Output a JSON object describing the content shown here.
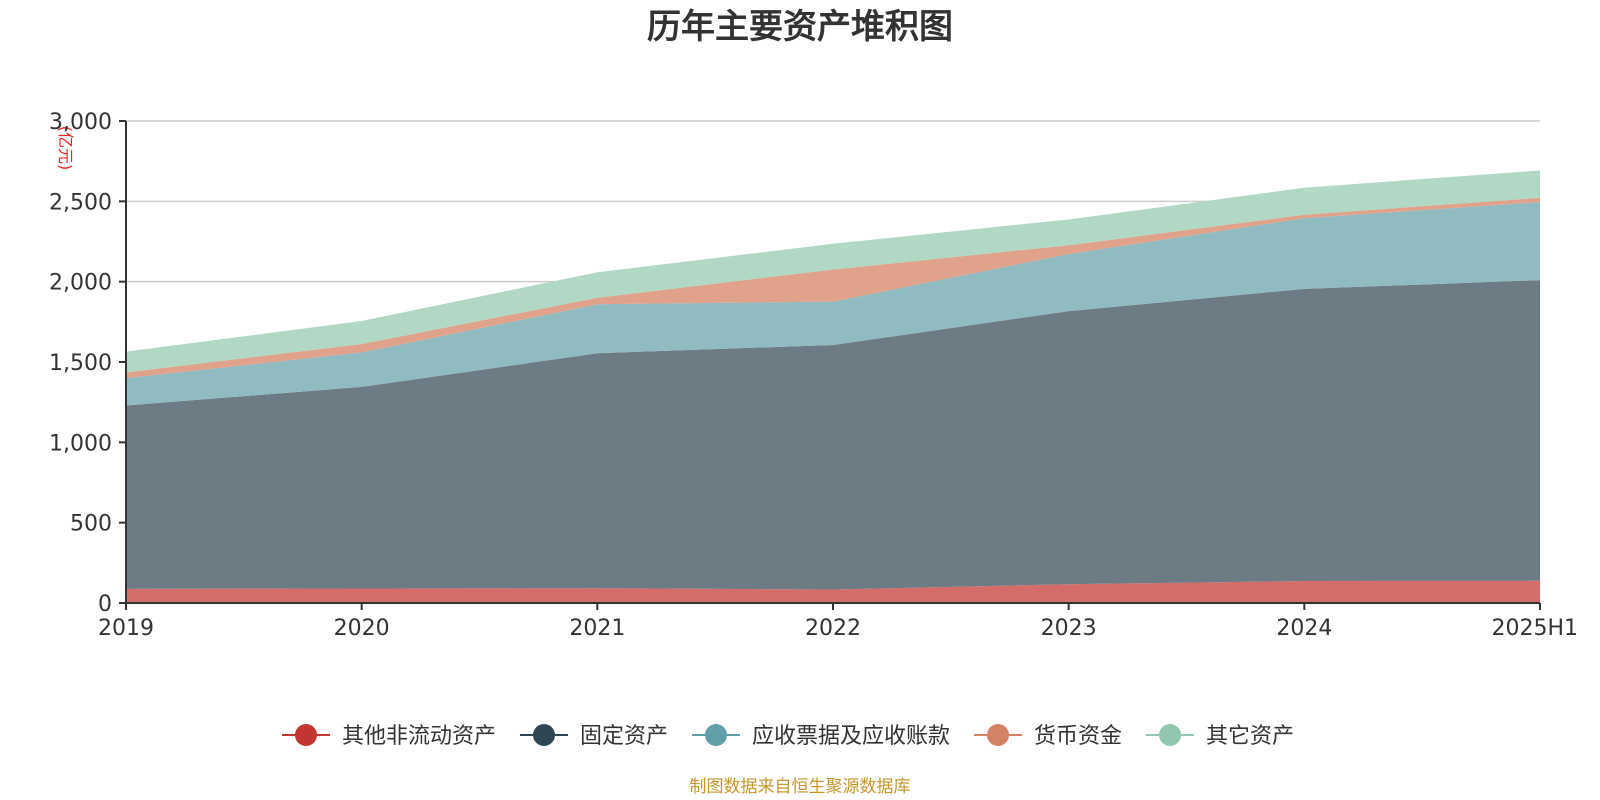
{
  "chart_data": {
    "type": "area",
    "stacked": true,
    "title": "历年主要资产堆积图",
    "unit_label": "(亿元)",
    "x": [
      "2019",
      "2020",
      "2021",
      "2022",
      "2023",
      "2024",
      "2025H1"
    ],
    "ylim": [
      0,
      3000
    ],
    "yticks": [
      0,
      500,
      1000,
      1500,
      2000,
      2500,
      3000
    ],
    "ytick_labels": [
      "0",
      "500",
      "1,000",
      "1,500",
      "2,000",
      "2,500",
      "3,000"
    ],
    "grid": true,
    "legend_position": "bottom",
    "series": [
      {
        "name": "其他非流动资产",
        "color": "#c23531",
        "fill": "#d46c69",
        "values": [
          88,
          90,
          92,
          84,
          117,
          137,
          138
        ]
      },
      {
        "name": "固定资产",
        "color": "#2f4554",
        "fill": "#6d7b85",
        "values": [
          1142,
          1255,
          1463,
          1522,
          1700,
          1818,
          1872
        ]
      },
      {
        "name": "应收票据及应收账款",
        "color": "#61a0a8",
        "fill": "#90bbc1",
        "values": [
          170,
          215,
          305,
          270,
          355,
          440,
          485
        ]
      },
      {
        "name": "货币资金",
        "color": "#d48265",
        "fill": "#e0a28b",
        "values": [
          35,
          52,
          40,
          200,
          55,
          22,
          27
        ]
      },
      {
        "name": "其它资产",
        "color": "#91c7ae",
        "fill": "#b0d8c4",
        "values": [
          130,
          143,
          158,
          160,
          160,
          168,
          170
        ]
      }
    ],
    "source": "制图数据来自恒生聚源数据库"
  }
}
